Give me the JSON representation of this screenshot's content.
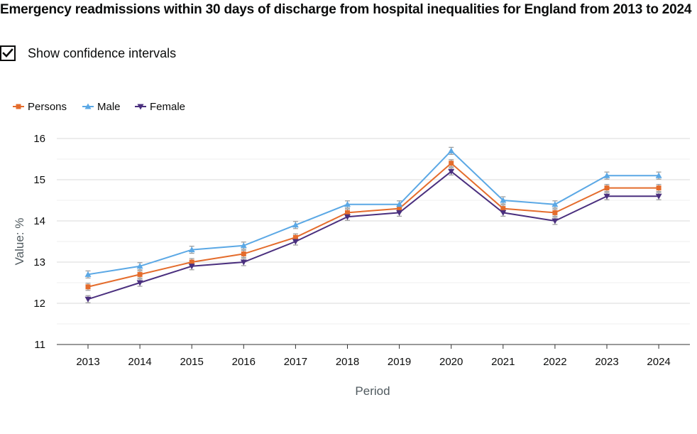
{
  "title": "Emergency readmissions within 30 days of discharge from hospital inequalities for England from 2013 to 2024",
  "controls": {
    "ci_label": "Show confidence intervals",
    "ci_checked": true
  },
  "chart_data": {
    "type": "line",
    "title": "",
    "xlabel": "Period",
    "ylabel": "Value: %",
    "ylim": [
      11,
      16
    ],
    "yticks": [
      11,
      12,
      13,
      14,
      15,
      16
    ],
    "grid": true,
    "legend_position": "top-left",
    "error_bars": true,
    "categories": [
      "2013",
      "2014",
      "2015",
      "2016",
      "2017",
      "2018",
      "2019",
      "2020",
      "2021",
      "2022",
      "2023",
      "2024"
    ],
    "series": [
      {
        "name": "Persons",
        "color": "#e46c2c",
        "marker": "square",
        "values": [
          12.4,
          12.7,
          13.0,
          13.2,
          13.6,
          14.2,
          14.3,
          15.4,
          14.3,
          14.2,
          14.8,
          14.8
        ]
      },
      {
        "name": "Male",
        "color": "#5ba8e5",
        "marker": "triangle-up",
        "values": [
          12.7,
          12.9,
          13.3,
          13.4,
          13.9,
          14.4,
          14.4,
          15.7,
          14.5,
          14.4,
          15.1,
          15.1
        ]
      },
      {
        "name": "Female",
        "color": "#4a2f7e",
        "marker": "triangle-down",
        "values": [
          12.1,
          12.5,
          12.9,
          13.0,
          13.5,
          14.1,
          14.2,
          15.2,
          14.2,
          14.0,
          14.6,
          14.6
        ]
      }
    ]
  }
}
